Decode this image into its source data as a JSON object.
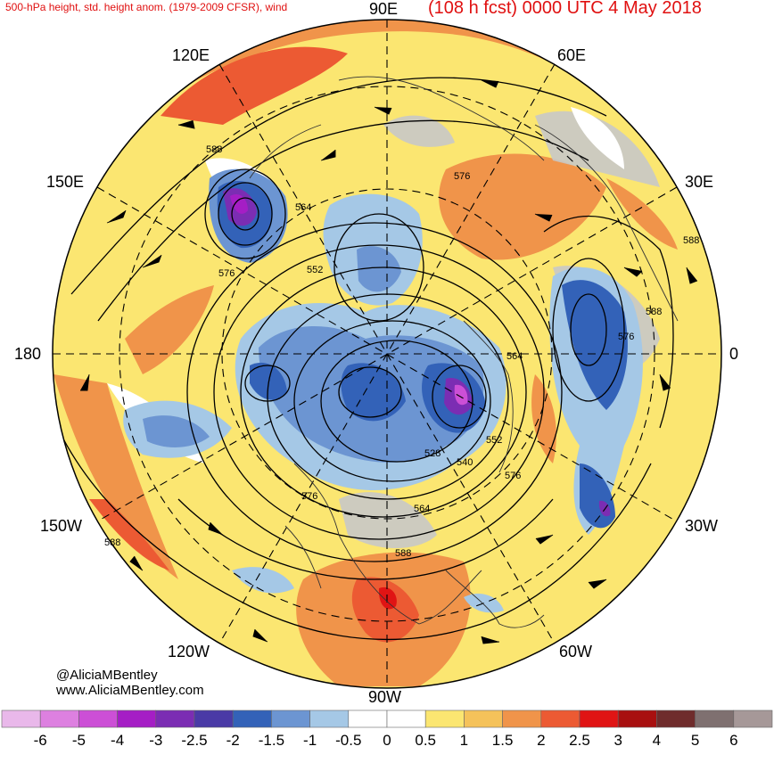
{
  "header": {
    "title_left": "500-hPa height, std. height anom. (1979-2009 CFSR), wind",
    "title_right": "(108 h fcst) 0000 UTC 4 May 2018"
  },
  "longitude_labels": {
    "lon_90e": "90E",
    "lon_120e": "120E",
    "lon_60e": "60E",
    "lon_150e": "150E",
    "lon_30e": "30E",
    "lon_180": "180",
    "lon_0": "0",
    "lon_150w": "150W",
    "lon_30w": "30W",
    "lon_120w": "120W",
    "lon_60w": "60W",
    "lon_90w": "90W"
  },
  "contour_labels": [
    "588",
    "564",
    "576",
    "552",
    "576",
    "588",
    "588",
    "576",
    "564",
    "552",
    "540",
    "528",
    "576",
    "564",
    "588",
    "576",
    "588"
  ],
  "credits": {
    "handle": "@AliciaMBentley",
    "website": "www.AliciaMBentley.com"
  },
  "colorbar": {
    "labels": [
      "-6",
      "-5",
      "-4",
      "-3",
      "-2.5",
      "-2",
      "-1.5",
      "-1",
      "-0.5",
      "0",
      "0.5",
      "1",
      "1.5",
      "2",
      "2.5",
      "3",
      "4",
      "5",
      "6"
    ],
    "colors": [
      "#e9b8ea",
      "#dd80e0",
      "#cc4fd6",
      "#a51ec5",
      "#7b2db3",
      "#4a3aa6",
      "#3362b8",
      "#6c95d2",
      "#a5c8e6",
      "#ffffff",
      "#ffffff",
      "#fbe671",
      "#f5c25a",
      "#f0944a",
      "#ec5a33",
      "#e01414",
      "#a81010",
      "#6f2c2c",
      "#7f7070",
      "#a69898"
    ]
  },
  "legend_colors": {
    "positive_anomaly": "#f0944a",
    "strong_positive": "#ec5a33",
    "negative_anomaly": "#3362b8",
    "strong_negative": "#7b2db3",
    "land_gray": "#c8c8c8"
  }
}
